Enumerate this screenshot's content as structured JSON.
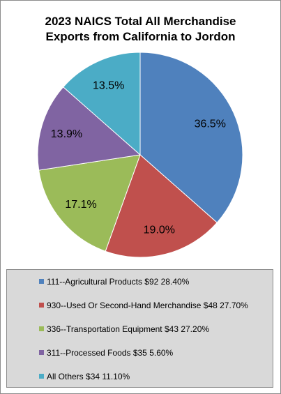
{
  "chart_data": {
    "type": "pie",
    "title_line1": "2023 NAICS Total All Merchandise",
    "title_line2": "Exports from California to Jordon",
    "slices": [
      {
        "percent": 36.5,
        "label": "36.5%",
        "color": "#4f81bd"
      },
      {
        "percent": 19.0,
        "label": "19.0%",
        "color": "#c0504d"
      },
      {
        "percent": 17.1,
        "label": "17.1%",
        "color": "#9bbb59"
      },
      {
        "percent": 13.9,
        "label": "13.9%",
        "color": "#8064a2"
      },
      {
        "percent": 13.5,
        "label": "13.5%",
        "color": "#4bacc6"
      }
    ],
    "legend": [
      {
        "text": "111--Agricultural Products $92 28.40%",
        "color": "#4f81bd"
      },
      {
        "text": "930--Used Or Second-Hand Merchandise $48 27.70%",
        "color": "#c0504d"
      },
      {
        "text": "336--Transportation Equipment $43 27.20%",
        "color": "#9bbb59"
      },
      {
        "text": "311--Processed Foods $35 5.60%",
        "color": "#8064a2"
      },
      {
        "text": "All Others $34 11.10%",
        "color": "#4bacc6"
      }
    ],
    "legend_placement": "bottom"
  }
}
